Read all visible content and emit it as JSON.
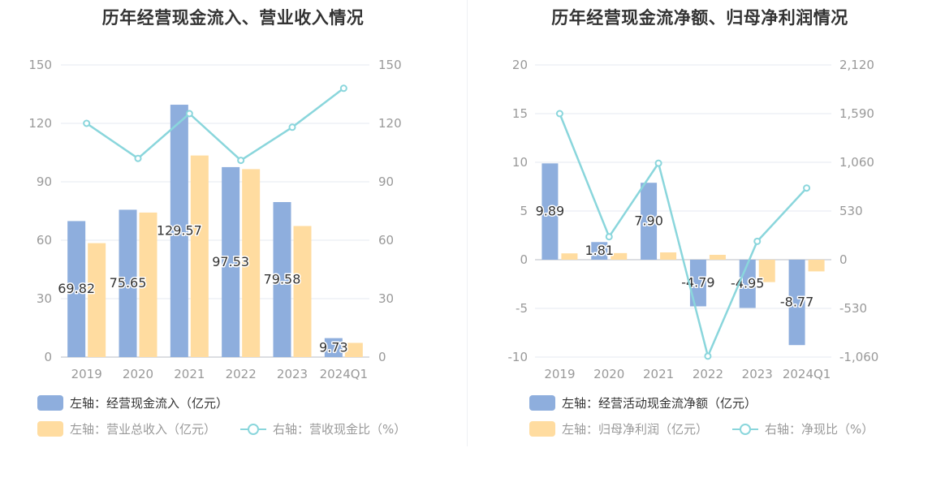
{
  "colors": {
    "bar_primary": "#8eaedd",
    "bar_secondary": "#ffdca0",
    "line": "#8ad6dc",
    "grid": "#e4e8f2",
    "axis_text": "#999999",
    "title": "#333333"
  },
  "chart_data": [
    {
      "type": "bar",
      "title": "历年经营现金流入、营业收入情况",
      "categories": [
        "2019",
        "2020",
        "2021",
        "2022",
        "2023",
        "2024Q1"
      ],
      "left_axis": {
        "ticks": [
          "0",
          "30",
          "60",
          "90",
          "120",
          "150"
        ],
        "ylim": [
          0,
          150
        ]
      },
      "right_axis": {
        "ticks": [
          "0",
          "30",
          "60",
          "90",
          "120",
          "150"
        ],
        "ylim": [
          0,
          150
        ]
      },
      "series": [
        {
          "name": "左轴：经营现金流入（亿元）",
          "kind": "bar",
          "axis": "left",
          "color": "#8eaedd",
          "values": [
            69.82,
            75.65,
            129.57,
            97.53,
            79.58,
            9.73
          ],
          "labels": [
            "69.82",
            "75.65",
            "129.57",
            "97.53",
            "79.58",
            "9.73"
          ]
        },
        {
          "name": "左轴：营业总收入（亿元）",
          "kind": "bar",
          "axis": "left",
          "color": "#ffdca0",
          "values": [
            58.5,
            74.2,
            103.5,
            96.5,
            67.3,
            7.3
          ]
        },
        {
          "name": "右轴：营收现金比（%）",
          "kind": "line",
          "axis": "right",
          "color": "#8ad6dc",
          "values": [
            120,
            102,
            125,
            101,
            118,
            138
          ]
        }
      ],
      "legend": [
        {
          "label": "左轴：经营现金流入（亿元）",
          "icon": "bar-swatch-icon",
          "color": "#8eaedd"
        },
        {
          "label": "左轴：营业总收入（亿元）",
          "icon": "bar-swatch-icon",
          "color": "#ffdca0"
        },
        {
          "label": "右轴：营收现金比（%）",
          "icon": "line-marker-icon",
          "color": "#8ad6dc"
        }
      ]
    },
    {
      "type": "bar",
      "title": "历年经营现金流净额、归母净利润情况",
      "categories": [
        "2019",
        "2020",
        "2021",
        "2022",
        "2023",
        "2024Q1"
      ],
      "left_axis": {
        "ticks": [
          "-10",
          "-5",
          "0",
          "5",
          "10",
          "15",
          "20"
        ],
        "ylim": [
          -10,
          20
        ]
      },
      "right_axis": {
        "ticks": [
          "-1,060",
          "-530",
          "0",
          "530",
          "1,060",
          "1,590",
          "2,120"
        ],
        "ylim": [
          -1060,
          2120
        ]
      },
      "series": [
        {
          "name": "左轴：经营活动现金流净额（亿元）",
          "kind": "bar",
          "axis": "left",
          "color": "#8eaedd",
          "values": [
            9.89,
            1.81,
            7.9,
            -4.79,
            -4.95,
            -8.77
          ],
          "labels": [
            "9.89",
            "1.81",
            "7.90",
            "-4.79",
            "-4.95",
            "-8.77"
          ]
        },
        {
          "name": "左轴：归母净利润（亿元）",
          "kind": "bar",
          "axis": "left",
          "color": "#ffdca0",
          "values": [
            0.65,
            0.68,
            0.75,
            0.5,
            -2.3,
            -1.2
          ]
        },
        {
          "name": "右轴：净现比（%）",
          "kind": "line",
          "axis": "right",
          "color": "#8ad6dc",
          "values": [
            1590,
            250,
            1050,
            -1050,
            200,
            780
          ]
        }
      ],
      "legend": [
        {
          "label": "左轴：经营活动现金流净额（亿元）",
          "icon": "bar-swatch-icon",
          "color": "#8eaedd"
        },
        {
          "label": "左轴：归母净利润（亿元）",
          "icon": "bar-swatch-icon",
          "color": "#ffdca0"
        },
        {
          "label": "右轴：净现比（%）",
          "icon": "line-marker-icon",
          "color": "#8ad6dc"
        }
      ]
    }
  ]
}
